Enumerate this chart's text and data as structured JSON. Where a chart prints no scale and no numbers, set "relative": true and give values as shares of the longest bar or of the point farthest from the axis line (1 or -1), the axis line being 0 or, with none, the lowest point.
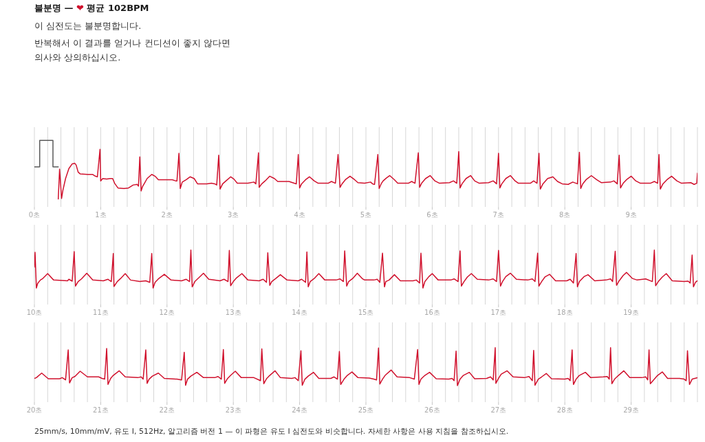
{
  "chart_data": [
    {
      "type": "line",
      "title": "불분명 — ❤ 평균 102BPM",
      "subtitle": "이 심전도는 불분명합니다.",
      "annotations": [
        "반복해서 이 결과를 얻거나 컨디션이 좋지 않다면 의사와 상의하십시오."
      ],
      "relative": true,
      "grid": "x",
      "tick_labels": "x",
      "xlim": [
        0,
        10
      ],
      "xticks": [
        {
          "value": 0,
          "label": "0초"
        },
        {
          "value": 0.2,
          "label": null
        },
        {
          "value": 0.4,
          "label": null
        },
        {
          "value": 0.6,
          "label": null
        },
        {
          "value": 0.8,
          "label": null
        },
        {
          "value": 1,
          "label": "1초"
        },
        {
          "value": 1.2,
          "label": null
        },
        {
          "value": 1.4,
          "label": null
        },
        {
          "value": 1.6,
          "label": null
        },
        {
          "value": 1.8,
          "label": null
        },
        {
          "value": 2,
          "label": "2초"
        },
        {
          "value": 2.2,
          "label": null
        },
        {
          "value": 2.4,
          "label": null
        },
        {
          "value": 2.6,
          "label": null
        },
        {
          "value": 2.8,
          "label": null
        },
        {
          "value": 3,
          "label": "3초"
        },
        {
          "value": 3.2,
          "label": null
        },
        {
          "value": 3.4,
          "label": null
        },
        {
          "value": 3.6,
          "label": null
        },
        {
          "value": 3.8,
          "label": null
        },
        {
          "value": 4,
          "label": "4초"
        },
        {
          "value": 4.2,
          "label": null
        },
        {
          "value": 4.4,
          "label": null
        },
        {
          "value": 4.6,
          "label": null
        },
        {
          "value": 4.8,
          "label": null
        },
        {
          "value": 5,
          "label": "5초"
        },
        {
          "value": 5.2,
          "label": null
        },
        {
          "value": 5.4,
          "label": null
        },
        {
          "value": 5.6,
          "label": null
        },
        {
          "value": 5.8,
          "label": null
        },
        {
          "value": 6,
          "label": "6초"
        },
        {
          "value": 6.2,
          "label": null
        },
        {
          "value": 6.4,
          "label": null
        },
        {
          "value": 6.6,
          "label": null
        },
        {
          "value": 6.8,
          "label": null
        },
        {
          "value": 7,
          "label": "7초"
        },
        {
          "value": 7.2,
          "label": null
        },
        {
          "value": 7.4,
          "label": null
        },
        {
          "value": 7.6,
          "label": null
        },
        {
          "value": 7.8,
          "label": null
        },
        {
          "value": 8,
          "label": "8초"
        },
        {
          "value": 8.2,
          "label": null
        },
        {
          "value": 8.4,
          "label": null
        },
        {
          "value": 8.6,
          "label": null
        },
        {
          "value": 8.8,
          "label": null
        },
        {
          "value": 9,
          "label": "9초"
        },
        {
          "value": 9.2,
          "label": null
        },
        {
          "value": 9.4,
          "label": null
        },
        {
          "value": 9.6,
          "label": null
        },
        {
          "value": 9.8,
          "label": null
        },
        {
          "value": 10,
          "label": null
        }
      ],
      "series": [
        {
          "color": "#5a5a5a",
          "x": [
            0,
            0.08,
            0.08,
            0.28,
            0.28,
            0.36
          ],
          "values": [
            0.55,
            0.55,
            1,
            1,
            0.55,
            0.55
          ]
        },
        {
          "color": "#d0102c",
          "x": [
            0.36,
            0.38,
            0.41,
            0.43,
            0.47,
            0.52,
            0.57,
            0.61,
            0.63,
            0.66,
            0.69,
            0.8,
            0.88,
            0.92,
            0.95,
            0.99,
            1,
            1.03,
            1.09,
            1.14,
            1.18,
            1.21,
            1.26,
            1.35,
            1.42,
            1.49,
            1.55,
            1.57,
            1.59,
            1.61,
            1.63,
            1.66,
            1.7,
            1.77,
            1.82,
            1.87,
            1.97,
            2.08,
            2.13,
            2.15,
            2.18,
            2.2,
            2.23,
            2.29,
            2.35,
            2.41,
            2.46,
            2.6,
            2.67,
            2.72,
            2.75,
            2.78,
            2.8,
            2.84,
            2.89,
            2.96,
            3.01,
            3.06,
            3.22,
            3.31,
            3.34,
            3.38,
            3.39,
            3.43,
            3.48,
            3.55,
            3.62,
            3.67,
            3.84,
            3.95,
            3.98,
            4,
            4.03,
            4.09,
            4.15,
            4.22,
            4.28,
            4.43,
            4.48,
            4.54,
            4.58,
            4.61,
            4.64,
            4.69,
            4.76,
            4.83,
            4.88,
            4.98,
            5.07,
            5.1,
            5.13,
            5.18,
            5.2,
            5.23,
            5.26,
            5.31,
            5.36,
            5.43,
            5.48,
            5.64,
            5.69,
            5.74,
            5.79,
            5.81,
            5.84,
            5.9,
            5.97,
            6.04,
            6.11,
            6.26,
            6.32,
            6.37,
            6.4,
            6.42,
            6.45,
            6.51,
            6.58,
            6.64,
            6.71,
            6.85,
            6.92,
            6.97,
            7,
            7.02,
            7.05,
            7.11,
            7.18,
            7.25,
            7.3,
            7.48,
            7.53,
            7.58,
            7.61,
            7.63,
            7.67,
            7.74,
            7.82,
            7.89,
            7.96,
            8.05,
            8.12,
            8.19,
            8.22,
            8.24,
            8.27,
            8.32,
            8.4,
            8.48,
            8.55,
            8.69,
            8.74,
            8.79,
            8.82,
            8.84,
            8.88,
            8.93,
            9,
            9.07,
            9.14,
            9.29,
            9.35,
            9.4,
            9.42,
            9.44,
            9.48,
            9.54,
            9.61,
            9.69,
            9.76,
            9.9,
            9.95,
            9.99,
            10
          ],
          "values": [
            0,
            0.51,
            0.01,
            0.15,
            0.35,
            0.52,
            0.6,
            0.61,
            0.58,
            0.46,
            0.43,
            0.42,
            0.42,
            0.39,
            0.38,
            0.85,
            0.31,
            0.35,
            0.34,
            0.35,
            0.35,
            0.27,
            0.19,
            0.18,
            0.19,
            0.24,
            0.25,
            0.22,
            0.72,
            0.14,
            0.21,
            0.27,
            0.35,
            0.42,
            0.39,
            0.33,
            0.33,
            0.33,
            0.31,
            0.31,
            0.78,
            0.18,
            0.29,
            0.33,
            0.38,
            0.35,
            0.26,
            0.26,
            0.27,
            0.26,
            0.24,
            0.75,
            0.17,
            0.26,
            0.31,
            0.38,
            0.34,
            0.27,
            0.27,
            0.29,
            0.26,
            0.79,
            0.2,
            0.26,
            0.31,
            0.39,
            0.35,
            0.3,
            0.3,
            0.26,
            0.76,
            0.19,
            0.26,
            0.33,
            0.38,
            0.31,
            0.27,
            0.27,
            0.3,
            0.27,
            0.76,
            0.2,
            0.26,
            0.33,
            0.39,
            0.33,
            0.28,
            0.27,
            0.29,
            0.26,
            0.25,
            0.76,
            0.18,
            0.26,
            0.31,
            0.36,
            0.4,
            0.33,
            0.27,
            0.27,
            0.3,
            0.27,
            0.79,
            0.2,
            0.27,
            0.35,
            0.4,
            0.31,
            0.27,
            0.28,
            0.31,
            0.27,
            0.81,
            0.19,
            0.26,
            0.35,
            0.4,
            0.31,
            0.27,
            0.28,
            0.31,
            0.26,
            0.78,
            0.19,
            0.26,
            0.35,
            0.4,
            0.31,
            0.27,
            0.27,
            0.31,
            0.27,
            0.78,
            0.17,
            0.26,
            0.35,
            0.38,
            0.3,
            0.26,
            0.25,
            0.29,
            0.26,
            0.8,
            0.18,
            0.26,
            0.33,
            0.4,
            0.33,
            0.28,
            0.29,
            0.31,
            0.26,
            0.75,
            0.19,
            0.27,
            0.33,
            0.39,
            0.31,
            0.27,
            0.27,
            0.3,
            0.27,
            0.76,
            0.17,
            0.26,
            0.33,
            0.39,
            0.31,
            0.27,
            0.28,
            0.25,
            0.27,
            0.44
          ]
        }
      ]
    },
    {
      "type": "line",
      "relative": true,
      "grid": "x",
      "tick_labels": "x",
      "xlim": [
        10,
        20
      ],
      "xticks": [
        {
          "value": 10,
          "label": "10초"
        },
        {
          "value": 10.2,
          "label": null
        },
        {
          "value": 10.4,
          "label": null
        },
        {
          "value": 10.6,
          "label": null
        },
        {
          "value": 10.8,
          "label": null
        },
        {
          "value": 11,
          "label": "11초"
        },
        {
          "value": 11.2,
          "label": null
        },
        {
          "value": 11.4,
          "label": null
        },
        {
          "value": 11.6,
          "label": null
        },
        {
          "value": 11.8,
          "label": null
        },
        {
          "value": 12,
          "label": "12초"
        },
        {
          "value": 12.2,
          "label": null
        },
        {
          "value": 12.4,
          "label": null
        },
        {
          "value": 12.6,
          "label": null
        },
        {
          "value": 12.8,
          "label": null
        },
        {
          "value": 13,
          "label": "13초"
        },
        {
          "value": 13.2,
          "label": null
        },
        {
          "value": 13.4,
          "label": null
        },
        {
          "value": 13.6,
          "label": null
        },
        {
          "value": 13.8,
          "label": null
        },
        {
          "value": 14,
          "label": "14초"
        },
        {
          "value": 14.2,
          "label": null
        },
        {
          "value": 14.4,
          "label": null
        },
        {
          "value": 14.6,
          "label": null
        },
        {
          "value": 14.8,
          "label": null
        },
        {
          "value": 15,
          "label": "15초"
        },
        {
          "value": 15.2,
          "label": null
        },
        {
          "value": 15.4,
          "label": null
        },
        {
          "value": 15.6,
          "label": null
        },
        {
          "value": 15.8,
          "label": null
        },
        {
          "value": 16,
          "label": "16초"
        },
        {
          "value": 16.2,
          "label": null
        },
        {
          "value": 16.4,
          "label": null
        },
        {
          "value": 16.6,
          "label": null
        },
        {
          "value": 16.8,
          "label": null
        },
        {
          "value": 17,
          "label": "17초"
        },
        {
          "value": 17.2,
          "label": null
        },
        {
          "value": 17.4,
          "label": null
        },
        {
          "value": 17.6,
          "label": null
        },
        {
          "value": 17.8,
          "label": null
        },
        {
          "value": 18,
          "label": "18초"
        },
        {
          "value": 18.2,
          "label": null
        },
        {
          "value": 18.4,
          "label": null
        },
        {
          "value": 18.6,
          "label": null
        },
        {
          "value": 18.8,
          "label": null
        },
        {
          "value": 19,
          "label": "19초"
        },
        {
          "value": 19.2,
          "label": null
        },
        {
          "value": 19.4,
          "label": null
        },
        {
          "value": 19.6,
          "label": null
        },
        {
          "value": 19.8,
          "label": null
        },
        {
          "value": 20,
          "label": null
        }
      ],
      "series": [
        {
          "color": "#d0102c",
          "x": [
            10,
            10.01,
            10.03,
            10.05,
            10.09,
            10.12,
            10.2,
            10.29,
            10.5,
            10.52,
            10.57,
            10.6,
            10.62,
            10.66,
            10.71,
            10.79,
            10.88,
            11.04,
            11.11,
            11.16,
            11.19,
            11.2,
            11.25,
            11.3,
            11.37,
            11.45,
            11.59,
            11.68,
            11.74,
            11.77,
            11.79,
            11.82,
            11.87,
            11.96,
            12.06,
            12.22,
            12.29,
            12.34,
            12.36,
            12.38,
            12.42,
            12.48,
            12.55,
            12.63,
            12.8,
            12.86,
            12.92,
            12.94,
            12.96,
            13,
            13.05,
            13.13,
            13.22,
            13.39,
            13.45,
            13.5,
            13.52,
            13.55,
            13.58,
            13.64,
            13.71,
            13.81,
            13.98,
            14.03,
            14.09,
            14.11,
            14.13,
            14.16,
            14.22,
            14.29,
            14.38,
            14.55,
            14.61,
            14.66,
            14.68,
            14.71,
            14.74,
            14.8,
            14.87,
            14.95,
            14.98,
            15.12,
            15.17,
            15.21,
            15.25,
            15.28,
            15.3,
            15.35,
            15.43,
            15.52,
            15.71,
            15.76,
            15.81,
            15.83,
            15.86,
            15.89,
            15.95,
            16,
            16.09,
            16.28,
            16.33,
            16.39,
            16.42,
            16.44,
            16.48,
            16.53,
            16.59,
            16.68,
            16.85,
            16.92,
            16.97,
            17,
            17.03,
            17.06,
            17.11,
            17.18,
            17.27,
            17.44,
            17.51,
            17.55,
            17.59,
            17.61,
            17.65,
            17.7,
            17.77,
            17.86,
            18.03,
            18.08,
            18.13,
            18.17,
            18.19,
            18.22,
            18.29,
            18.35,
            18.45,
            18.62,
            18.69,
            18.72,
            18.76,
            18.78,
            18.82,
            18.88,
            18.93,
            19.02,
            19.09,
            19.22,
            19.32,
            19.35,
            19.37,
            19.41,
            19.47,
            19.53,
            19.62,
            19.8,
            19.86,
            19.89,
            19.92,
            19.94,
            19.97,
            20
          ],
          "values": [
            0.55,
            0.94,
            0,
            0.12,
            0.21,
            0.24,
            0.38,
            0.21,
            0.19,
            0.23,
            0.18,
            0.96,
            0.05,
            0.17,
            0.24,
            0.39,
            0.21,
            0.19,
            0.23,
            0.17,
            0.91,
            0.04,
            0.17,
            0.25,
            0.38,
            0.21,
            0.17,
            0.19,
            0.15,
            0.91,
            0,
            0.15,
            0.24,
            0.36,
            0.21,
            0.19,
            0.23,
            0.17,
            1,
            0.03,
            0.17,
            0.27,
            0.39,
            0.23,
            0.19,
            0.23,
            0.17,
            0.99,
            0.06,
            0.17,
            0.27,
            0.38,
            0.21,
            0.19,
            0.23,
            0.15,
            0.93,
            0.07,
            0.17,
            0.25,
            0.35,
            0.21,
            0.19,
            0.23,
            0.15,
            0.95,
            0.03,
            0.17,
            0.25,
            0.38,
            0.21,
            0.21,
            0.24,
            0.17,
            0.98,
            0.05,
            0.17,
            0.25,
            0.39,
            0.24,
            0.21,
            0.21,
            0.23,
            0.15,
            0.92,
            0.03,
            0.17,
            0.21,
            0.35,
            0.19,
            0.19,
            0.21,
            0.13,
            0.92,
            0,
            0.17,
            0.3,
            0.38,
            0.21,
            0.21,
            0.24,
            0.17,
            0.98,
            0.05,
            0.17,
            0.29,
            0.38,
            0.23,
            0.21,
            0.24,
            0.17,
            0.99,
            0.05,
            0.17,
            0.3,
            0.39,
            0.23,
            0.21,
            0.24,
            0.17,
            0.92,
            0.05,
            0.17,
            0.29,
            0.36,
            0.19,
            0.19,
            0.23,
            0.13,
            0.91,
            0.03,
            0.17,
            0.3,
            0.35,
            0.19,
            0.21,
            0.24,
            0.17,
            0.97,
            0.07,
            0.19,
            0.33,
            0.41,
            0.25,
            0.21,
            0.24,
            0.17,
            1,
            0.06,
            0.17,
            0.29,
            0.38,
            0.19,
            0.17,
            0.18,
            0.13,
            0.87,
            0.03,
            0.15,
            0.19
          ]
        }
      ]
    },
    {
      "type": "line",
      "relative": true,
      "grid": "x",
      "tick_labels": "x",
      "xlim": [
        20,
        30
      ],
      "annotations": [
        "25mm/s, 10mm/mV, 유도 I, 512Hz, 알고리즘 버전 1 — 이 파형은 유도 I 심전도와 비슷합니다. 자세한 사항은 사용 지침을 참조하십시오."
      ],
      "xticks": [
        {
          "value": 20,
          "label": "20초"
        },
        {
          "value": 20.2,
          "label": null
        },
        {
          "value": 20.4,
          "label": null
        },
        {
          "value": 20.6,
          "label": null
        },
        {
          "value": 20.8,
          "label": null
        },
        {
          "value": 21,
          "label": "21초"
        },
        {
          "value": 21.2,
          "label": null
        },
        {
          "value": 21.4,
          "label": null
        },
        {
          "value": 21.6,
          "label": null
        },
        {
          "value": 21.8,
          "label": null
        },
        {
          "value": 22,
          "label": "22초"
        },
        {
          "value": 22.2,
          "label": null
        },
        {
          "value": 22.4,
          "label": null
        },
        {
          "value": 22.6,
          "label": null
        },
        {
          "value": 22.8,
          "label": null
        },
        {
          "value": 23,
          "label": "23초"
        },
        {
          "value": 23.2,
          "label": null
        },
        {
          "value": 23.4,
          "label": null
        },
        {
          "value": 23.6,
          "label": null
        },
        {
          "value": 23.8,
          "label": null
        },
        {
          "value": 24,
          "label": "24초"
        },
        {
          "value": 24.2,
          "label": null
        },
        {
          "value": 24.4,
          "label": null
        },
        {
          "value": 24.6,
          "label": null
        },
        {
          "value": 24.8,
          "label": null
        },
        {
          "value": 25,
          "label": "25초"
        },
        {
          "value": 25.2,
          "label": null
        },
        {
          "value": 25.4,
          "label": null
        },
        {
          "value": 25.6,
          "label": null
        },
        {
          "value": 25.8,
          "label": null
        },
        {
          "value": 26,
          "label": "26초"
        },
        {
          "value": 26.2,
          "label": null
        },
        {
          "value": 26.4,
          "label": null
        },
        {
          "value": 26.6,
          "label": null
        },
        {
          "value": 26.8,
          "label": null
        },
        {
          "value": 27,
          "label": "27초"
        },
        {
          "value": 27.2,
          "label": null
        },
        {
          "value": 27.4,
          "label": null
        },
        {
          "value": 27.6,
          "label": null
        },
        {
          "value": 27.8,
          "label": null
        },
        {
          "value": 28,
          "label": "28초"
        },
        {
          "value": 28.2,
          "label": null
        },
        {
          "value": 28.4,
          "label": null
        },
        {
          "value": 28.6,
          "label": null
        },
        {
          "value": 28.8,
          "label": null
        },
        {
          "value": 29,
          "label": "29초"
        },
        {
          "value": 29.2,
          "label": null
        },
        {
          "value": 29.4,
          "label": null
        },
        {
          "value": 29.6,
          "label": null
        },
        {
          "value": 29.8,
          "label": null
        },
        {
          "value": 30,
          "label": null
        }
      ],
      "series": [
        {
          "color": "#d0102c",
          "x": [
            20,
            20.03,
            20.11,
            20.21,
            20.38,
            20.42,
            20.47,
            20.51,
            20.53,
            20.57,
            20.61,
            20.69,
            20.8,
            20.97,
            21.02,
            21.06,
            21.09,
            21.11,
            21.15,
            21.19,
            21.28,
            21.37,
            21.56,
            21.61,
            21.64,
            21.68,
            21.7,
            21.73,
            21.78,
            21.87,
            21.96,
            22.15,
            22.22,
            22.26,
            22.28,
            22.31,
            22.36,
            22.45,
            22.55,
            22.72,
            22.77,
            22.82,
            22.85,
            22.87,
            22.91,
            22.96,
            23.03,
            23.12,
            23.31,
            23.41,
            23.43,
            23.46,
            23.5,
            23.55,
            23.63,
            23.71,
            23.88,
            23.93,
            23.98,
            24.02,
            24.04,
            24.08,
            24.13,
            24.21,
            24.29,
            24.47,
            24.52,
            24.57,
            24.6,
            24.62,
            24.67,
            24.72,
            24.79,
            24.88,
            25.05,
            25.12,
            25.16,
            25.19,
            25.21,
            25.25,
            25.29,
            25.38,
            25.47,
            25.66,
            25.73,
            25.78,
            25.8,
            25.83,
            25.89,
            25.96,
            26.06,
            26.25,
            26.3,
            26.33,
            26.36,
            26.38,
            26.42,
            26.47,
            26.56,
            26.64,
            26.82,
            26.88,
            26.92,
            26.95,
            26.96,
            27,
            27.04,
            27.13,
            27.22,
            27.39,
            27.46,
            27.51,
            27.53,
            27.55,
            27.6,
            27.65,
            27.72,
            27.8,
            28,
            28.05,
            28.08,
            28.11,
            28.13,
            28.17,
            28.22,
            28.31,
            28.39,
            28.58,
            28.64,
            28.67,
            28.69,
            28.71,
            28.75,
            28.81,
            28.89,
            28.98,
            29.16,
            29.22,
            29.25,
            29.27,
            29.29,
            29.35,
            29.4,
            29.47,
            29.55,
            29.73,
            29.8,
            29.83,
            29.85,
            29.88,
            29.92,
            30
          ],
          "values": [
            0.19,
            0.21,
            0.33,
            0.18,
            0.18,
            0.21,
            0.15,
            0.94,
            0.07,
            0.21,
            0.24,
            0.38,
            0.23,
            0.23,
            0.19,
            0.17,
            0.98,
            0.03,
            0.19,
            0.27,
            0.39,
            0.23,
            0.21,
            0.23,
            0.17,
            0.94,
            0.06,
            0.17,
            0.25,
            0.33,
            0.19,
            0.17,
            0.15,
            0.88,
            0.01,
            0.17,
            0.25,
            0.35,
            0.21,
            0.21,
            0.24,
            0.17,
            0.95,
            0.06,
            0.18,
            0.27,
            0.38,
            0.21,
            0.21,
            0.13,
            0.97,
            0.05,
            0.18,
            0.27,
            0.39,
            0.21,
            0.19,
            0.21,
            0.13,
            0.92,
            0.01,
            0.17,
            0.25,
            0.35,
            0.19,
            0.19,
            0.23,
            0.17,
            0.9,
            0.03,
            0.17,
            0.27,
            0.36,
            0.21,
            0.2,
            0.17,
            0.15,
            0.99,
            0.04,
            0.17,
            0.27,
            0.41,
            0.23,
            0.21,
            0.17,
            0.95,
            0.03,
            0.17,
            0.27,
            0.35,
            0.18,
            0.17,
            0.19,
            0.13,
            0.91,
            0,
            0.17,
            0.27,
            0.35,
            0.18,
            0.19,
            0.23,
            0.15,
            1,
            0.06,
            0.19,
            0.3,
            0.39,
            0.23,
            0.21,
            0.24,
            0.13,
            0.93,
            0.01,
            0.17,
            0.23,
            0.32,
            0.18,
            0.17,
            0.19,
            0.13,
            0.94,
            0.03,
            0.17,
            0.27,
            0.35,
            0.21,
            0.23,
            0.24,
            0.17,
            1,
            0.05,
            0.17,
            0.27,
            0.39,
            0.21,
            0.21,
            0.23,
            0.15,
            0.94,
            0.05,
            0.17,
            0.27,
            0.36,
            0.19,
            0.19,
            0.17,
            0.13,
            0.92,
            0.03,
            0.17,
            0.21
          ]
        }
      ]
    }
  ]
}
